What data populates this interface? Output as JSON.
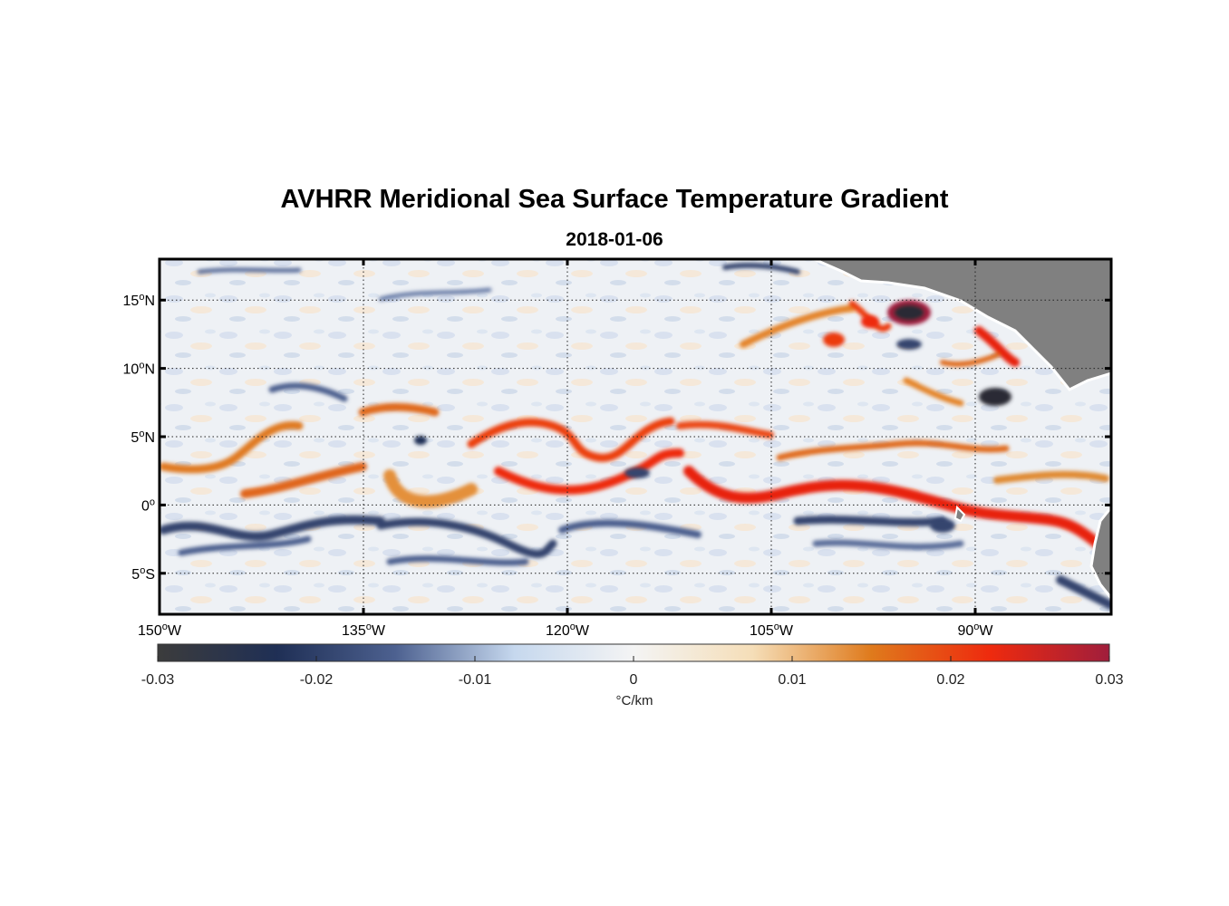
{
  "title": "AVHRR Meridional Sea Surface Temperature Gradient",
  "subtitle": "2018-01-06",
  "map": {
    "extent": {
      "lon": [
        -150,
        -80
      ],
      "lat": [
        -8,
        18
      ]
    },
    "lon_ticks": [
      {
        "value": -150,
        "num": "150",
        "hemi": "W"
      },
      {
        "value": -135,
        "num": "135",
        "hemi": "W"
      },
      {
        "value": -120,
        "num": "120",
        "hemi": "W"
      },
      {
        "value": -105,
        "num": "105",
        "hemi": "W"
      },
      {
        "value": -90,
        "num": "90",
        "hemi": "W"
      }
    ],
    "lat_ticks": [
      {
        "value": 15,
        "num": "15",
        "hemi": "N"
      },
      {
        "value": 10,
        "num": "10",
        "hemi": "N"
      },
      {
        "value": 5,
        "num": "5",
        "hemi": "N"
      },
      {
        "value": 0,
        "num": "0",
        "hemi": ""
      },
      {
        "value": -5,
        "num": "5",
        "hemi": "S"
      }
    ],
    "grid": true,
    "land_color": "#808080"
  },
  "colorbar": {
    "units": "°C/km",
    "range": [
      -0.03,
      0.03
    ],
    "tick_labels": [
      "-0.03",
      "-0.02",
      "-0.01",
      "0",
      "0.01",
      "0.02",
      "0.03"
    ],
    "tick_values": [
      -0.03,
      -0.02,
      -0.01,
      0,
      0.01,
      0.02,
      0.03
    ],
    "colors": [
      "#3c3c3c",
      "#1f2f55",
      "#4d6190",
      "#c6d8ee",
      "#f4f4f4",
      "#f5deb8",
      "#df7a1c",
      "#ee2a0e",
      "#a01e3c"
    ]
  }
}
